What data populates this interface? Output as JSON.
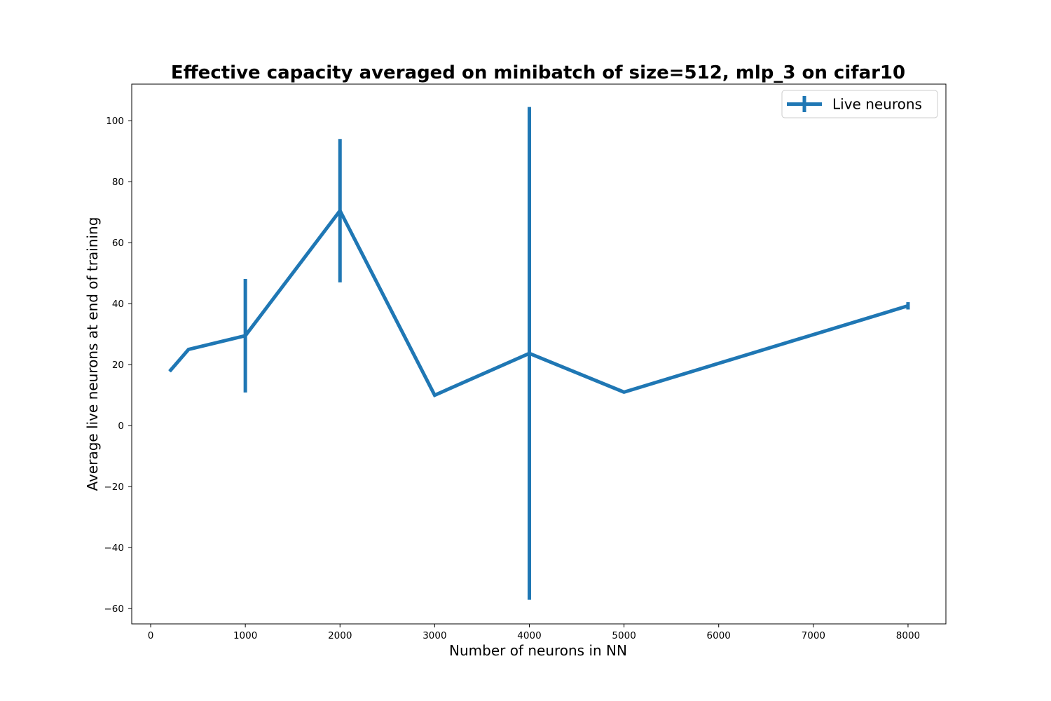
{
  "chart_data": {
    "type": "line",
    "title": "Effective capacity averaged on minibatch of size=512, mlp_3 on cifar10",
    "xlabel": "Number of neurons in NN",
    "ylabel": "Average live neurons at end of training",
    "xlim": [
      -200,
      8400
    ],
    "ylim": [
      -65,
      112
    ],
    "xticks": [
      0,
      1000,
      2000,
      3000,
      4000,
      5000,
      6000,
      7000,
      8000
    ],
    "yticks": [
      -60,
      -40,
      -20,
      0,
      20,
      40,
      60,
      80,
      100
    ],
    "xtick_labels": [
      "0",
      "1000",
      "2000",
      "3000",
      "4000",
      "5000",
      "6000",
      "7000",
      "8000"
    ],
    "ytick_labels": [
      "−60",
      "−40",
      "−20",
      "0",
      "20",
      "40",
      "60",
      "80",
      "100"
    ],
    "grid": false,
    "legend_position": "top-right",
    "series": [
      {
        "name": "Live neurons",
        "color": "#1f77b4",
        "x": [
          200,
          400,
          1000,
          2000,
          3000,
          4000,
          5000,
          8000
        ],
        "y": [
          17.8,
          25,
          29.5,
          70.5,
          10,
          23.7,
          11,
          39.3
        ],
        "yerr": [
          0,
          0,
          18.6,
          23.5,
          0,
          80.8,
          0,
          1.2
        ]
      }
    ]
  }
}
